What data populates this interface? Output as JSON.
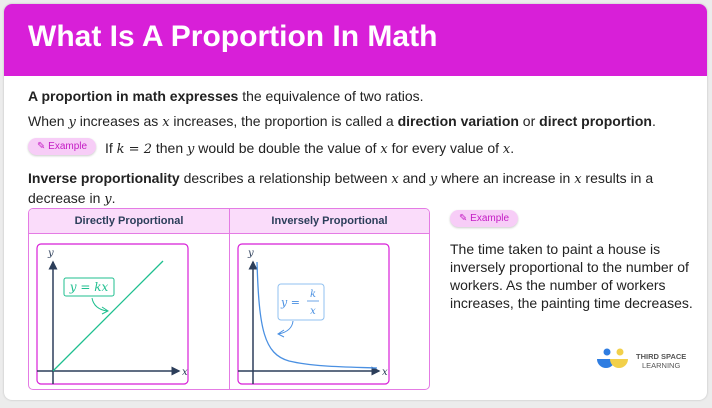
{
  "header": {
    "title": "What Is A Proportion In Math"
  },
  "intro": {
    "bold": "A proportion in math expresses",
    "rest": " the equivalence of two ratios."
  },
  "line2": {
    "p1": "When ",
    "v1": "y",
    "p2": " increases as ",
    "v2": "x",
    "p3": " increases, the proportion is called a ",
    "b1": "direction variation",
    "p4": " or ",
    "b2": "direct proportion",
    "p5": "."
  },
  "example1": {
    "badge": "Example",
    "p1": "If ",
    "m1": "k = 2",
    "p2": " then ",
    "v1": "y",
    "p3": " would be double the value of ",
    "v2": "x",
    "p4": " for every value of ",
    "v3": "x",
    "p5": "."
  },
  "line4": {
    "bold": "Inverse proportionality",
    "p1": " describes a relationship between ",
    "v1": "x",
    "p2": " and ",
    "v2": "y",
    "p3": " where an increase in ",
    "v3": "x",
    "p4": " results in a",
    "p5": "decrease in ",
    "v4": "y",
    "p6": "."
  },
  "table": {
    "col1": "Directly Proportional",
    "col2": "Inversely Proportional",
    "direct": {
      "x_label": "x",
      "y_label": "y",
      "equation": "y = kx",
      "color": "#1fbf8f"
    },
    "inverse": {
      "x_label": "x",
      "y_label": "y",
      "eq_lhs": "y =",
      "eq_num": "k",
      "eq_den": "x",
      "color": "#4a90e2"
    }
  },
  "example2": {
    "badge": "Example",
    "text": "The time taken to paint a house is inversely proportional to the number of workers. As the number of workers increases, the painting time decreases."
  },
  "logo": {
    "line1": "THIRD SPACE",
    "line2": "LEARNING"
  },
  "colors": {
    "brand": "#d81fd8",
    "table_border": "#e47be4",
    "table_header": "#fadcfa"
  }
}
